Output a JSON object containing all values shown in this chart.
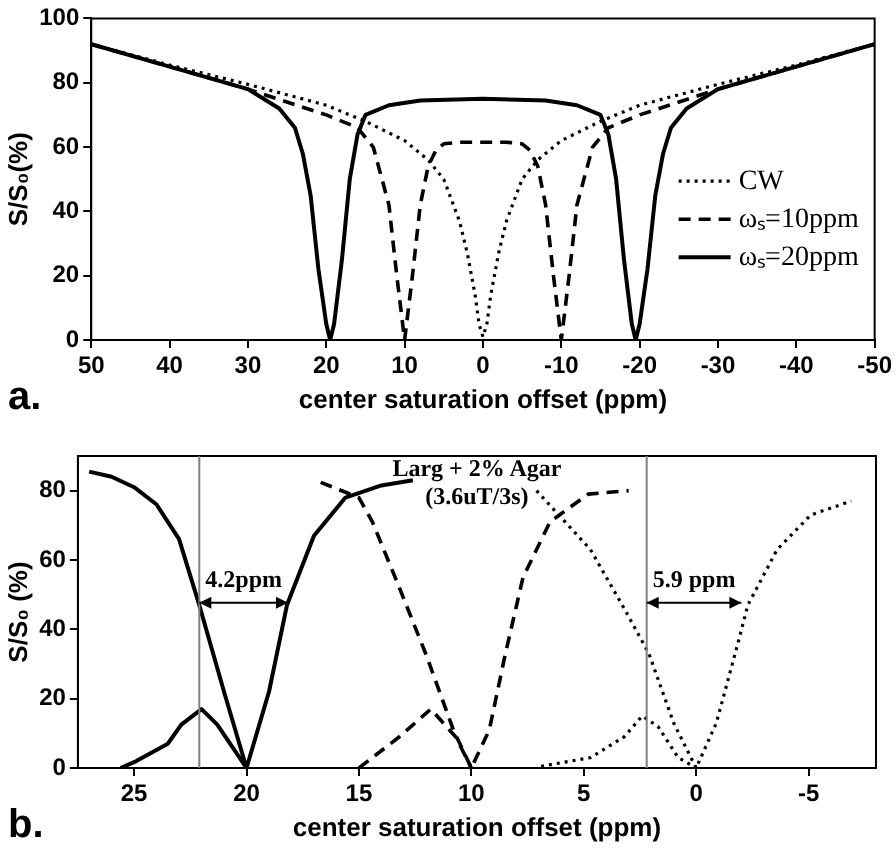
{
  "chart_data": [
    {
      "type": "line",
      "title": "a.",
      "xlabel": "center saturation offset (ppm)",
      "ylabel": "S/S₀(%)",
      "xlim": [
        50,
        -50
      ],
      "xticks": [
        50,
        40,
        30,
        20,
        10,
        0,
        -10,
        -20,
        -30,
        -40,
        -50
      ],
      "ylim": [
        0,
        100
      ],
      "yticks": [
        0,
        20,
        40,
        60,
        80,
        100
      ],
      "legend": "right",
      "marker": "none",
      "series": [
        {
          "name": "CW",
          "color": "#000000",
          "line_style": "dotted",
          "type": "line",
          "x": [
            50,
            40,
            30,
            20,
            15,
            10,
            7,
            5,
            3,
            2,
            1,
            0.5,
            0,
            -0.5,
            -1,
            -2,
            -3,
            -5,
            -7,
            -10,
            -15,
            -20,
            -30,
            -40,
            -50
          ],
          "values": [
            92,
            85.5,
            79.5,
            73,
            68,
            62,
            56,
            50,
            37,
            27,
            14,
            5,
            1,
            5,
            14,
            27,
            37,
            50,
            56,
            62,
            68,
            73,
            79.5,
            85.5,
            92
          ]
        },
        {
          "name": "ωₛ=10ppm",
          "color": "#000000",
          "line_style": "dashed",
          "type": "line",
          "x": [
            50,
            40,
            30,
            20,
            16,
            14,
            12,
            11,
            10,
            9,
            8,
            7,
            6,
            5,
            3,
            0,
            -3,
            -5,
            -6,
            -7,
            -8,
            -9,
            -10,
            -11,
            -12,
            -14,
            -16,
            -20,
            -30,
            -40,
            -50
          ],
          "values": [
            92,
            85,
            78,
            70,
            66,
            60,
            42,
            20,
            0,
            20,
            42,
            54,
            59,
            61,
            61.5,
            61.5,
            61.5,
            61,
            59,
            54,
            42,
            20,
            0,
            20,
            42,
            60,
            66,
            70,
            78,
            85,
            92
          ]
        },
        {
          "name": "ωₛ=20ppm",
          "color": "#000000",
          "line_style": "solid",
          "type": "line",
          "x": [
            50,
            40,
            30,
            26,
            24,
            23,
            22,
            21,
            20,
            19.5,
            19,
            18,
            17,
            16,
            15,
            12,
            8,
            0,
            -8,
            -12,
            -15,
            -16,
            -17,
            -18,
            -19,
            -19.5,
            -20,
            -21,
            -22,
            -23,
            -24,
            -26,
            -30,
            -40,
            -50
          ],
          "values": [
            92,
            85,
            78,
            72,
            66,
            58,
            45,
            22,
            5,
            0,
            5,
            25,
            50,
            64,
            70,
            73,
            74.5,
            75,
            74.5,
            73,
            70,
            64,
            50,
            25,
            5,
            0,
            5,
            22,
            45,
            58,
            66,
            72,
            78,
            85,
            92
          ]
        }
      ]
    },
    {
      "type": "line",
      "title": "b.",
      "xlabel": "center saturation offset (ppm)",
      "ylabel": "S/S₀ (%)",
      "xlim": [
        27.5,
        -8
      ],
      "xticks": [
        25,
        20,
        15,
        10,
        5,
        0,
        -5
      ],
      "ylim": [
        0,
        90
      ],
      "yticks": [
        0,
        20,
        40,
        60,
        80
      ],
      "marker": "none",
      "ref_lines": [
        {
          "axis": "x",
          "value": 22.1,
          "color": "#808080"
        },
        {
          "axis": "x",
          "value": 2.2,
          "color": "#808080"
        }
      ],
      "annotations": [
        "4.2ppm",
        "5.9 ppm",
        "Larg + 2% Agar",
        "(3.6uT/3s)"
      ],
      "series": [
        {
          "color": "#000000",
          "line_style": "solid",
          "type": "line",
          "x": [
            27,
            26,
            25,
            24,
            23,
            22.1,
            21,
            20,
            19,
            18.2,
            17,
            15.6,
            14,
            12.6
          ],
          "values": [
            85.5,
            84,
            81,
            76,
            66,
            47,
            22,
            0,
            22,
            47,
            67,
            78,
            81.5,
            83
          ]
        },
        {
          "color": "#000000",
          "line_style": "solid",
          "type": "line",
          "x": [
            25.6,
            24.9,
            23.5,
            22.9,
            22,
            21.3,
            20
          ],
          "values": [
            0,
            2,
            7,
            12.5,
            17,
            12.5,
            0
          ]
        },
        {
          "color": "#000000",
          "line_style": "dashed",
          "type": "line",
          "x": [
            16.7,
            15,
            14.4,
            13.2,
            12,
            10.8,
            10,
            9.2,
            8.5,
            7.7,
            6.5,
            4.8,
            3
          ],
          "values": [
            82.4,
            78,
            71,
            52,
            32.5,
            11,
            0,
            11,
            32.5,
            55,
            71,
            79,
            80
          ]
        },
        {
          "color": "#000000",
          "line_style": "dashed",
          "type": "line",
          "x": [
            15,
            13.2,
            11.8,
            10.7,
            10
          ],
          "values": [
            0,
            9,
            17,
            9,
            0
          ]
        },
        {
          "color": "#000000",
          "line_style": "dotted",
          "type": "line",
          "x": [
            7.1,
            4.7,
            3.2,
            2.1,
            1,
            0,
            -0.9,
            -1.9,
            -2.3,
            -3.6,
            -5.1,
            -6.9
          ],
          "values": [
            80,
            63,
            46,
            33,
            13,
            0,
            13,
            37,
            47,
            63,
            73,
            77
          ]
        },
        {
          "color": "#000000",
          "line_style": "dotted",
          "type": "line",
          "x": [
            6.9,
            4.7,
            3.2,
            2.4,
            1.7,
            0.8,
            0
          ],
          "values": [
            0.5,
            3,
            9,
            15,
            12,
            3,
            0
          ]
        }
      ]
    }
  ]
}
